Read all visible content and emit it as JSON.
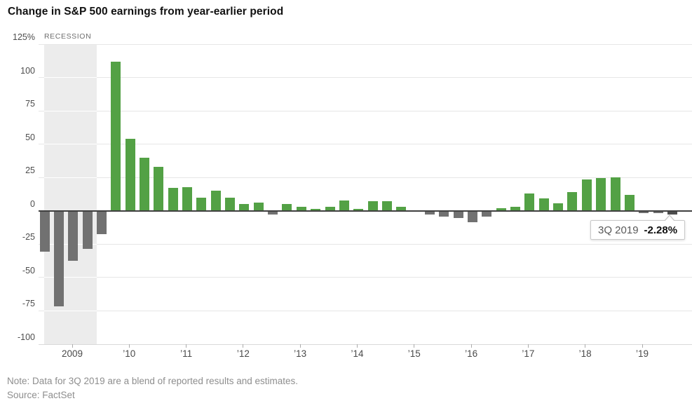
{
  "title": "Change in S&P 500 earnings from year-earlier period",
  "recession_label": "RECESSION",
  "note": "Note: Data for 3Q 2019 are a blend of reported results and estimates.",
  "source": "Source: FactSet",
  "callout": {
    "label": "3Q 2019",
    "value": "-2.28%"
  },
  "colors": {
    "positive": "#53a145",
    "negative": "#717171",
    "highlight": "#4d4d4d",
    "recession_band": "#ececec",
    "gridline": "#e6e6e6",
    "zero_line": "#3f3f3f",
    "axis_text": "#4d4d4d",
    "note_text": "#8e8e8e"
  },
  "y_axis": {
    "labels": [
      "125%",
      "100",
      "75",
      "50",
      "25",
      "0",
      "-25",
      "-50",
      "-75",
      "-100"
    ],
    "values": [
      125,
      100,
      75,
      50,
      25,
      0,
      -25,
      -50,
      -75,
      -100
    ]
  },
  "x_axis": {
    "labels": [
      "2009",
      "’10",
      "’11",
      "’12",
      "’13",
      "’14",
      "’15",
      "’16",
      "’17",
      "’18",
      "’19"
    ]
  },
  "chart_data": {
    "type": "bar",
    "title": "Change in S&P 500 earnings from year-earlier period",
    "unit": "percent",
    "ylim": [
      -100,
      125
    ],
    "y_ticks": [
      125,
      100,
      75,
      50,
      25,
      0,
      -25,
      -50,
      -75,
      -100
    ],
    "x_tick_labels": [
      "2009",
      "’10",
      "’11",
      "’12",
      "’13",
      "’14",
      "’15",
      "’16",
      "’17",
      "’18",
      "’19"
    ],
    "grid": true,
    "recession_span": {
      "from": "3Q 2008",
      "to": "2Q 2009"
    },
    "callout_point": {
      "period": "3Q 2019",
      "value": -2.28
    },
    "points": [
      {
        "period": "3Q 2008",
        "value": -30
      },
      {
        "period": "4Q 2008",
        "value": -71
      },
      {
        "period": "1Q 2009",
        "value": -37
      },
      {
        "period": "2Q 2009",
        "value": -28
      },
      {
        "period": "3Q 2009",
        "value": -17
      },
      {
        "period": "4Q 2009",
        "value": 112
      },
      {
        "period": "1Q 2010",
        "value": 54
      },
      {
        "period": "2Q 2010",
        "value": 40
      },
      {
        "period": "3Q 2010",
        "value": 33
      },
      {
        "period": "4Q 2010",
        "value": 17
      },
      {
        "period": "1Q 2011",
        "value": 18
      },
      {
        "period": "2Q 2011",
        "value": 10
      },
      {
        "period": "3Q 2011",
        "value": 15
      },
      {
        "period": "4Q 2011",
        "value": 10
      },
      {
        "period": "1Q 2012",
        "value": 5
      },
      {
        "period": "2Q 2012",
        "value": 6
      },
      {
        "period": "3Q 2012",
        "value": -2
      },
      {
        "period": "4Q 2012",
        "value": 5
      },
      {
        "period": "1Q 2013",
        "value": 3
      },
      {
        "period": "2Q 2013",
        "value": 1.5
      },
      {
        "period": "3Q 2013",
        "value": 3
      },
      {
        "period": "4Q 2013",
        "value": 8
      },
      {
        "period": "1Q 2014",
        "value": 1.5
      },
      {
        "period": "2Q 2014",
        "value": 7
      },
      {
        "period": "3Q 2014",
        "value": 7
      },
      {
        "period": "4Q 2014",
        "value": 3
      },
      {
        "period": "1Q 2015",
        "value": 0
      },
      {
        "period": "2Q 2015",
        "value": -2
      },
      {
        "period": "3Q 2015",
        "value": -4
      },
      {
        "period": "4Q 2015",
        "value": -5
      },
      {
        "period": "1Q 2016",
        "value": -8
      },
      {
        "period": "2Q 2016",
        "value": -4
      },
      {
        "period": "3Q 2016",
        "value": 2
      },
      {
        "period": "4Q 2016",
        "value": 3
      },
      {
        "period": "1Q 2017",
        "value": 13
      },
      {
        "period": "2Q 2017",
        "value": 9.5
      },
      {
        "period": "3Q 2017",
        "value": 5.5
      },
      {
        "period": "4Q 2017",
        "value": 14
      },
      {
        "period": "1Q 2018",
        "value": 23.5
      },
      {
        "period": "2Q 2018",
        "value": 24.5
      },
      {
        "period": "3Q 2018",
        "value": 25
      },
      {
        "period": "4Q 2018",
        "value": 12
      },
      {
        "period": "1Q 2019",
        "value": -1
      },
      {
        "period": "2Q 2019",
        "value": -1
      },
      {
        "period": "3Q 2019",
        "value": -2.28,
        "highlight": true
      }
    ]
  }
}
